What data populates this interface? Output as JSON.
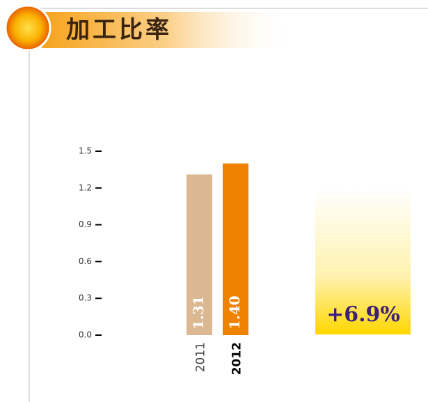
{
  "chart_data": {
    "type": "bar",
    "title": "加工比率",
    "categories": [
      "2011",
      "2012"
    ],
    "values": [
      1.31,
      1.4
    ],
    "value_labels": [
      "1.31",
      "1.40"
    ],
    "colors": [
      "#dbb891",
      "#ef8200"
    ],
    "ylim": [
      0,
      1.5
    ],
    "yticks": [
      {
        "value": 0,
        "label": "0.0"
      },
      0.3,
      0.6,
      0.9,
      1.2,
      1.5
    ],
    "annotation": "+6.9%"
  }
}
